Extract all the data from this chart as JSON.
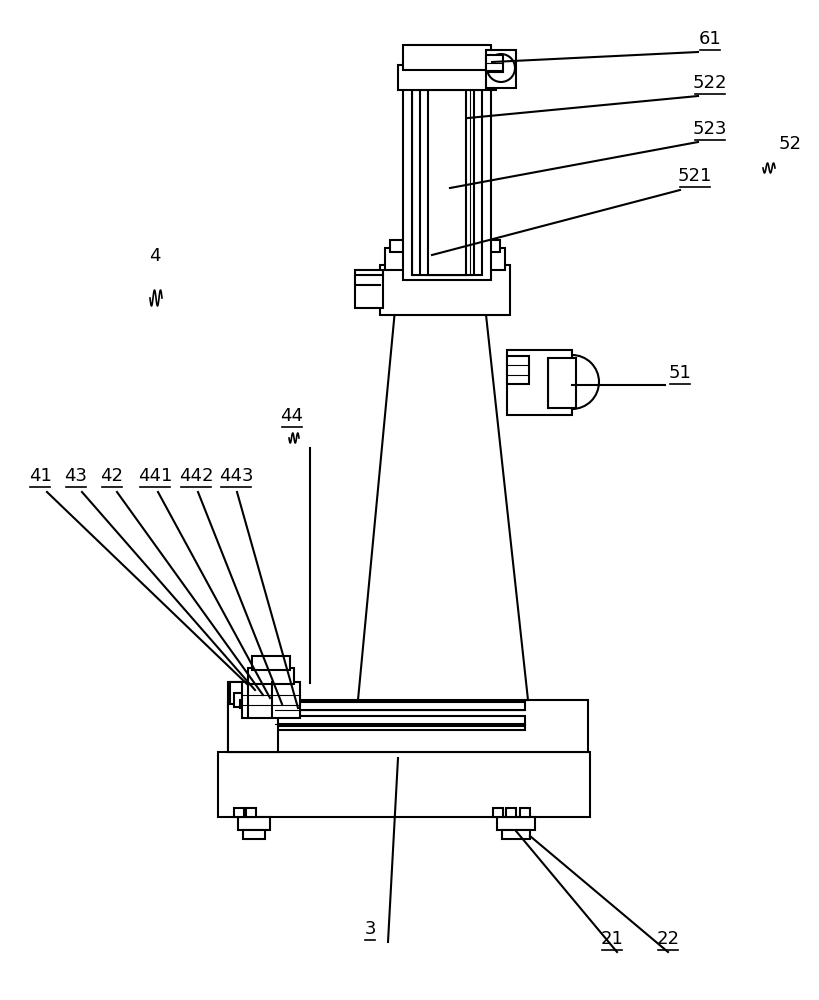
{
  "bg_color": "#ffffff",
  "line_color": "#000000",
  "lw": 1.5,
  "labels": [
    [
      "61",
      710,
      48
    ],
    [
      "522",
      710,
      92
    ],
    [
      "523",
      710,
      138
    ],
    [
      "521",
      695,
      185
    ],
    [
      "51",
      680,
      382
    ],
    [
      "41",
      40,
      485
    ],
    [
      "43",
      76,
      485
    ],
    [
      "42",
      112,
      485
    ],
    [
      "441",
      155,
      485
    ],
    [
      "442",
      196,
      485
    ],
    [
      "443",
      236,
      485
    ],
    [
      "44",
      292,
      425
    ],
    [
      "3",
      370,
      938
    ],
    [
      "21",
      612,
      948
    ],
    [
      "22",
      668,
      948
    ]
  ],
  "label_fontsize": 13,
  "leader_lines": [
    [
      698,
      52,
      492,
      62
    ],
    [
      698,
      96,
      468,
      118
    ],
    [
      698,
      142,
      450,
      188
    ],
    [
      680,
      190,
      432,
      255
    ],
    [
      665,
      385,
      572,
      385
    ],
    [
      310,
      448,
      310,
      683
    ],
    [
      47,
      492,
      248,
      685
    ],
    [
      82,
      492,
      255,
      690
    ],
    [
      117,
      492,
      263,
      695
    ],
    [
      158,
      492,
      270,
      698
    ],
    [
      198,
      492,
      282,
      704
    ],
    [
      237,
      492,
      298,
      708
    ],
    [
      388,
      942,
      398,
      758
    ],
    [
      617,
      952,
      516,
      831
    ],
    [
      668,
      952,
      530,
      836
    ]
  ]
}
